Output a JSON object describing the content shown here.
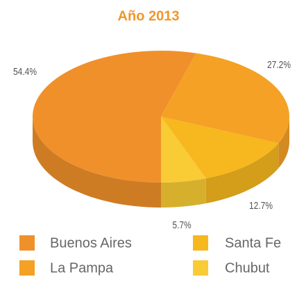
{
  "chart_data": {
    "type": "pie",
    "title": "Año 2013",
    "categories": [
      "Buenos Aires",
      "La Pampa",
      "Santa Fe",
      "Chubut"
    ],
    "values": [
      54.4,
      27.2,
      12.7,
      5.7
    ],
    "value_labels": [
      "54.4%",
      "27.2%",
      "12.7%",
      "5.7%"
    ],
    "colors": [
      "#f0902a",
      "#f4a126",
      "#f7b71e",
      "#f9cb34"
    ],
    "legend": "bottom"
  }
}
